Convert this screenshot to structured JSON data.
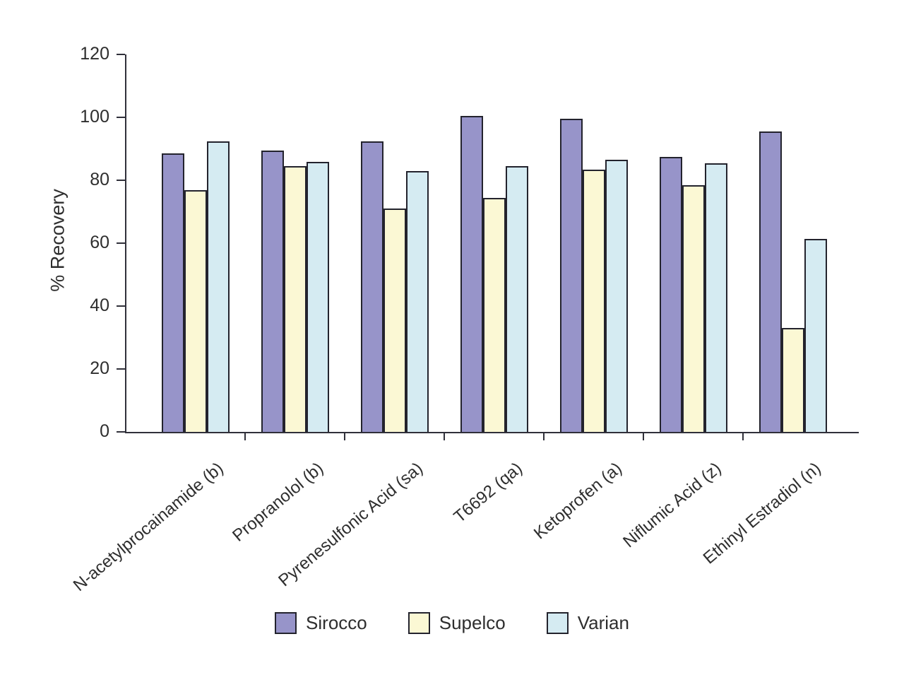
{
  "chart_data": {
    "type": "bar",
    "title": "",
    "ylabel": "% Recovery",
    "xlabel": "",
    "ylim": [
      0,
      120
    ],
    "yticks": [
      0,
      20,
      40,
      60,
      80,
      100,
      120
    ],
    "grid": false,
    "legend_position": "bottom-center",
    "categories": [
      "N-acetylprocainamide (b)",
      "Propranolol (b)",
      "Pyrenesulfonic Acid (sa)",
      "T6692 (qa)",
      "Ketoprofen (a)",
      "Niflumic Acid (z)",
      "Ethinyl Estradiol (n)"
    ],
    "series": [
      {
        "name": "Sirocco",
        "color": "#9794c9",
        "values": [
          88,
          89,
          92,
          100,
          99,
          87,
          95
        ]
      },
      {
        "name": "Supelco",
        "color": "#fbf8d4",
        "values": [
          76.5,
          84,
          70.5,
          74,
          83,
          78,
          32.5
        ]
      },
      {
        "name": "Varian",
        "color": "#d5ebf2",
        "values": [
          92,
          85.5,
          82.5,
          84,
          86,
          85,
          61
        ]
      }
    ],
    "bar_border_color": "#23232d",
    "axis_color": "#30303a",
    "text_color": "#2e2e2e"
  }
}
